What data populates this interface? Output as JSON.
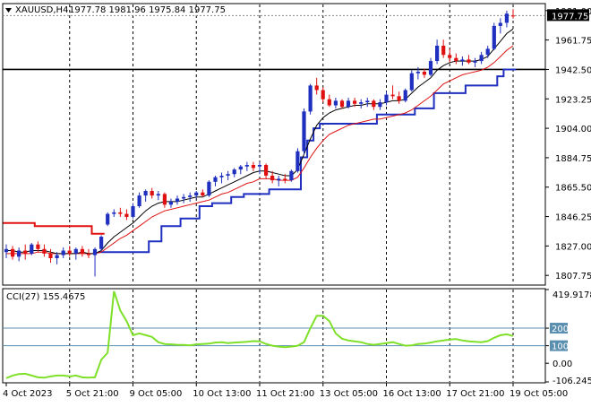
{
  "header": {
    "symbol": "XAUUSD,H4",
    "ohlc": "1977.78 1981.96 1975.84 1977.75"
  },
  "cci_panel": {
    "label": "CCI(27) 155.4675",
    "level_labels": [
      "419.9178",
      "200",
      "100",
      "0.00",
      "-106.2453"
    ],
    "level_values": [
      419.9178,
      200,
      100,
      0,
      -106.2453
    ]
  },
  "colors": {
    "bull": "#1f2fbf",
    "bear": "#e01010",
    "ma_fast": "#000000",
    "ma_slow": "#e01010",
    "step_up": "#1f2fbf",
    "step_down": "#e01010",
    "cci_line": "#7fe02a",
    "cci_level": "#5b8fb0",
    "badge_bg": "#000000",
    "badge_text": "#ffffff"
  },
  "chart_data": [
    {
      "type": "candlestick",
      "title": "XAUUSD,H4",
      "ylim": [
        1802,
        1985
      ],
      "y_ticks": [
        1981.0,
        1961.75,
        1942.5,
        1923.25,
        1904.0,
        1884.75,
        1865.5,
        1846.25,
        1827.0,
        1807.75
      ],
      "y_tick_labels": [
        "1981.00",
        "1961.75",
        "1942.50",
        "1923.25",
        "1904.00",
        "1884.75",
        "1865.50",
        "1846.25",
        "1827.00",
        "1807.75"
      ],
      "x_tick_labels": [
        "4 Oct 2023",
        "5 Oct 21:00",
        "9 Oct 05:00",
        "10 Oct 13:00",
        "11 Oct 21:00",
        "13 Oct 05:00",
        "16 Oct 13:00",
        "17 Oct 21:00",
        "19 Oct 05:00"
      ],
      "x_tick_index": [
        0,
        10,
        20,
        30,
        40,
        50,
        60,
        70,
        80
      ],
      "current_price": 1977.75,
      "current_price_label": "1977.75",
      "horizontal_line": 1942.5,
      "candles": [
        [
          1823.0,
          1828.0,
          1819.0,
          1825.0
        ],
        [
          1825.0,
          1827.0,
          1818.0,
          1820.0
        ],
        [
          1820.0,
          1826.0,
          1817.0,
          1824.0
        ],
        [
          1824.0,
          1828.0,
          1818.0,
          1822.0
        ],
        [
          1822.0,
          1829.0,
          1821.0,
          1828.0
        ],
        [
          1828.0,
          1830.0,
          1823.0,
          1825.0
        ],
        [
          1825.0,
          1828.0,
          1820.0,
          1822.0
        ],
        [
          1822.0,
          1825.0,
          1816.0,
          1819.0
        ],
        [
          1819.0,
          1823.0,
          1815.0,
          1821.0
        ],
        [
          1821.0,
          1826.0,
          1819.0,
          1824.0
        ],
        [
          1824.0,
          1827.0,
          1820.0,
          1822.0
        ],
        [
          1822.0,
          1826.0,
          1818.0,
          1825.0
        ],
        [
          1825.0,
          1827.0,
          1820.0,
          1822.0
        ],
        [
          1822.0,
          1825.0,
          1819.0,
          1821.0
        ],
        [
          1821.0,
          1826.0,
          1807.0,
          1825.0
        ],
        [
          1825.0,
          1834.0,
          1824.0,
          1833.0
        ],
        [
          1841.0,
          1849.0,
          1840.0,
          1848.0
        ],
        [
          1848.0,
          1851.0,
          1846.0,
          1849.0
        ],
        [
          1849.0,
          1852.0,
          1846.0,
          1848.0
        ],
        [
          1848.0,
          1851.0,
          1844.0,
          1846.0
        ],
        [
          1846.0,
          1855.0,
          1845.0,
          1853.0
        ],
        [
          1853.0,
          1862.0,
          1852.0,
          1860.0
        ],
        [
          1860.0,
          1864.0,
          1856.0,
          1863.0
        ],
        [
          1863.0,
          1865.0,
          1858.0,
          1860.0
        ],
        [
          1860.0,
          1863.0,
          1857.0,
          1861.0
        ],
        [
          1861.0,
          1862.0,
          1852.0,
          1854.0
        ],
        [
          1854.0,
          1858.0,
          1852.0,
          1856.0
        ],
        [
          1856.0,
          1860.0,
          1854.0,
          1858.0
        ],
        [
          1858.0,
          1861.0,
          1855.0,
          1859.0
        ],
        [
          1859.0,
          1862.0,
          1856.0,
          1860.0
        ],
        [
          1860.0,
          1863.0,
          1858.0,
          1862.0
        ],
        [
          1862.0,
          1864.0,
          1859.0,
          1860.0
        ],
        [
          1860.0,
          1870.0,
          1859.0,
          1869.0
        ],
        [
          1869.0,
          1873.0,
          1866.0,
          1872.0
        ],
        [
          1872.0,
          1875.0,
          1868.0,
          1873.0
        ],
        [
          1873.0,
          1876.0,
          1870.0,
          1874.0
        ],
        [
          1874.0,
          1878.0,
          1872.0,
          1877.0
        ],
        [
          1877.0,
          1880.0,
          1874.0,
          1879.0
        ],
        [
          1879.0,
          1882.0,
          1876.0,
          1880.0
        ],
        [
          1880.0,
          1882.0,
          1876.0,
          1878.0
        ],
        [
          1879.0,
          1882.0,
          1874.0,
          1880.0
        ],
        [
          1880.0,
          1881.0,
          1871.0,
          1873.0
        ],
        [
          1873.0,
          1876.0,
          1868.0,
          1870.0
        ],
        [
          1870.0,
          1873.0,
          1866.0,
          1871.0
        ],
        [
          1871.0,
          1874.0,
          1868.0,
          1870.0
        ],
        [
          1870.0,
          1877.0,
          1869.0,
          1876.0
        ],
        [
          1876.0,
          1891.0,
          1875.0,
          1889.0
        ],
        [
          1889.0,
          1917.0,
          1887.0,
          1915.0
        ],
        [
          1915.0,
          1933.0,
          1913.0,
          1932.0
        ],
        [
          1932.0,
          1937.0,
          1926.0,
          1929.0
        ],
        [
          1929.0,
          1931.0,
          1921.0,
          1923.0
        ],
        [
          1923.0,
          1926.0,
          1918.0,
          1919.0
        ],
        [
          1919.0,
          1924.0,
          1917.0,
          1922.0
        ],
        [
          1922.0,
          1923.0,
          1917.0,
          1918.0
        ],
        [
          1918.0,
          1924.0,
          1917.0,
          1922.0
        ],
        [
          1922.0,
          1924.0,
          1918.0,
          1920.0
        ],
        [
          1920.0,
          1923.0,
          1917.0,
          1921.0
        ],
        [
          1921.0,
          1924.0,
          1918.0,
          1922.0
        ],
        [
          1922.0,
          1923.0,
          1916.0,
          1918.0
        ],
        [
          1918.0,
          1923.0,
          1916.0,
          1921.0
        ],
        [
          1921.0,
          1928.0,
          1919.0,
          1926.0
        ],
        [
          1926.0,
          1932.0,
          1923.0,
          1925.0
        ],
        [
          1925.0,
          1928.0,
          1920.0,
          1922.0
        ],
        [
          1922.0,
          1930.0,
          1921.0,
          1929.0
        ],
        [
          1929.0,
          1942.0,
          1928.0,
          1940.0
        ],
        [
          1940.0,
          1944.0,
          1936.0,
          1941.0
        ],
        [
          1941.0,
          1943.0,
          1937.0,
          1939.0
        ],
        [
          1939.0,
          1950.0,
          1938.0,
          1948.0
        ],
        [
          1948.0,
          1962.0,
          1946.0,
          1958.0
        ],
        [
          1958.0,
          1962.0,
          1950.0,
          1952.0
        ],
        [
          1952.0,
          1956.0,
          1947.0,
          1950.0
        ],
        [
          1950.0,
          1953.0,
          1946.0,
          1948.0
        ],
        [
          1948.0,
          1951.0,
          1945.0,
          1949.0
        ],
        [
          1949.0,
          1952.0,
          1946.0,
          1947.0
        ],
        [
          1947.0,
          1950.0,
          1944.0,
          1948.0
        ],
        [
          1948.0,
          1954.0,
          1946.0,
          1952.0
        ],
        [
          1952.0,
          1958.0,
          1950.0,
          1956.0
        ],
        [
          1956.0,
          1973.0,
          1955.0,
          1971.0
        ],
        [
          1971.0,
          1976.0,
          1966.0,
          1973.0
        ],
        [
          1973.0,
          1981.0,
          1970.0,
          1979.0
        ],
        [
          1977.78,
          1981.96,
          1975.84,
          1977.75
        ]
      ],
      "ma_fast": [
        1824,
        1824,
        1823,
        1823,
        1824,
        1824,
        1824,
        1823,
        1822,
        1822,
        1822,
        1822,
        1823,
        1822,
        1822,
        1824,
        1829,
        1833,
        1836,
        1839,
        1842,
        1846,
        1850,
        1853,
        1855,
        1856,
        1856,
        1856,
        1857,
        1858,
        1859,
        1859,
        1861,
        1863,
        1865,
        1867,
        1869,
        1871,
        1873,
        1875,
        1876,
        1876,
        1875,
        1874,
        1873,
        1873,
        1877,
        1887,
        1897,
        1906,
        1911,
        1914,
        1916,
        1917,
        1918,
        1919,
        1919,
        1920,
        1920,
        1920,
        1921,
        1922,
        1922,
        1923,
        1927,
        1931,
        1934,
        1937,
        1942,
        1945,
        1947,
        1948,
        1948,
        1948,
        1948,
        1949,
        1951,
        1956,
        1961,
        1966,
        1969
      ],
      "ma_slow": [
        1822,
        1822,
        1822,
        1822,
        1822,
        1823,
        1823,
        1822,
        1822,
        1822,
        1822,
        1822,
        1822,
        1822,
        1822,
        1823,
        1826,
        1829,
        1832,
        1834,
        1837,
        1840,
        1843,
        1846,
        1848,
        1850,
        1851,
        1852,
        1853,
        1854,
        1855,
        1856,
        1857,
        1859,
        1861,
        1862,
        1864,
        1866,
        1868,
        1869,
        1871,
        1871,
        1871,
        1870,
        1870,
        1870,
        1872,
        1878,
        1885,
        1891,
        1896,
        1900,
        1902,
        1904,
        1906,
        1907,
        1908,
        1909,
        1910,
        1910,
        1911,
        1912,
        1913,
        1914,
        1916,
        1919,
        1922,
        1925,
        1929,
        1933,
        1935,
        1937,
        1939,
        1940,
        1941,
        1942,
        1944,
        1947,
        1951,
        1955,
        1958
      ],
      "step_up": [
        null,
        null,
        null,
        null,
        null,
        null,
        null,
        null,
        null,
        null,
        null,
        null,
        null,
        null,
        null,
        1823.0,
        1823.0,
        1823.0,
        1823.0,
        1823.0,
        1823.0,
        1823.0,
        1823.0,
        1830.0,
        1830.0,
        1840.0,
        1840.0,
        1840.0,
        1845.0,
        1845.0,
        1845.0,
        1853.0,
        1853.0,
        1855.0,
        1855.0,
        1855.0,
        1859.0,
        1859.0,
        1861.0,
        1861.0,
        1861.0,
        1861.0,
        1864.0,
        1864.0,
        1864.0,
        1864.0,
        1864.0,
        1885.0,
        1896.0,
        1904.0,
        1907.0,
        1907.0,
        1907.0,
        1907.0,
        1907.0,
        1907.0,
        1907.0,
        1907.0,
        1907.0,
        1913.0,
        1913.0,
        1913.0,
        1913.0,
        1913.0,
        1913.0,
        1917.0,
        1917.0,
        1917.0,
        1927.0,
        1927.0,
        1927.0,
        1927.0,
        1927.0,
        1932.0,
        1932.0,
        1932.0,
        1932.0,
        1932.0,
        1938.0,
        1942.5,
        1942.5
      ],
      "step_down": [
        1842.0,
        1842.0,
        1842.0,
        1842.0,
        1842.0,
        1840.0,
        1840.0,
        1840.0,
        1840.0,
        1840.0,
        1840.0,
        1840.0,
        1840.0,
        1840.0,
        1835.0,
        1835.0,
        null,
        null,
        null,
        null,
        null,
        null,
        null,
        null,
        null,
        null,
        null,
        null,
        null,
        null,
        null,
        null,
        null,
        null,
        null,
        null,
        null,
        null,
        null,
        null,
        null,
        null,
        null,
        null,
        null,
        null,
        null,
        null,
        null,
        null,
        null,
        null,
        null,
        null,
        null,
        null,
        null,
        null,
        null,
        null,
        null,
        null,
        null,
        null,
        null,
        null,
        null,
        null,
        null,
        null,
        null,
        null,
        null,
        null,
        null,
        null,
        null,
        null,
        null,
        null,
        null
      ]
    },
    {
      "type": "line",
      "title": "CCI(27) 155.4675",
      "ylim": [
        -106.2453,
        419.9178
      ],
      "levels": [
        200,
        100
      ],
      "series": [
        {
          "name": "CCI(27)",
          "values": [
            -85,
            -70,
            -62,
            -60,
            -70,
            -80,
            -82,
            -75,
            -70,
            -70,
            -75,
            -70,
            -80,
            -82,
            -80,
            20,
            60,
            410,
            300,
            240,
            160,
            170,
            160,
            150,
            120,
            110,
            108,
            105,
            104,
            102,
            108,
            110,
            112,
            118,
            120,
            115,
            118,
            120,
            122,
            126,
            125,
            110,
            100,
            95,
            92,
            95,
            100,
            120,
            200,
            270,
            270,
            240,
            170,
            140,
            130,
            125,
            120,
            110,
            105,
            110,
            115,
            120,
            110,
            100,
            102,
            110,
            112,
            118,
            125,
            130,
            135,
            138,
            130,
            125,
            122,
            120,
            126,
            145,
            160,
            165,
            155.4675
          ]
        }
      ]
    }
  ]
}
